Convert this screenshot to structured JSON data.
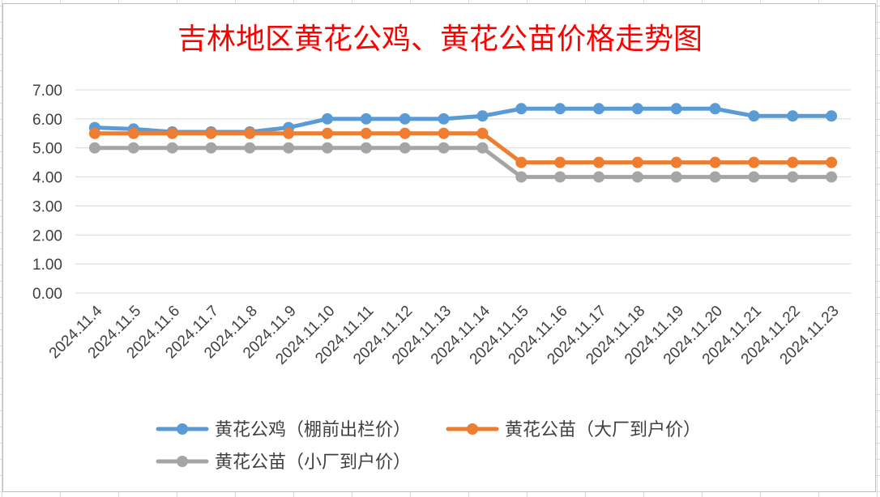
{
  "chart_data": {
    "type": "line",
    "title": "吉林地区黄花公鸡、黄花公苗价格走势图",
    "categories": [
      "2024.11.4",
      "2024.11.5",
      "2024.11.6",
      "2024.11.7",
      "2024.11.8",
      "2024.11.9",
      "2024.11.10",
      "2024.11.11",
      "2024.11.12",
      "2024.11.13",
      "2024.11.14",
      "2024.11.15",
      "2024.11.16",
      "2024.11.17",
      "2024.11.18",
      "2024.11.19",
      "2024.11.20",
      "2024.11.21",
      "2024.11.22",
      "2024.11.23"
    ],
    "yticks": [
      "0.00",
      "1.00",
      "2.00",
      "3.00",
      "4.00",
      "5.00",
      "6.00",
      "7.00"
    ],
    "ylim": [
      0,
      7
    ],
    "grid": true,
    "legend_position": "bottom",
    "series": [
      {
        "name": "黄花公鸡（棚前出栏价）",
        "color": "#5b9bd5",
        "values": [
          5.7,
          5.65,
          5.55,
          5.55,
          5.55,
          5.7,
          6.0,
          6.0,
          6.0,
          6.0,
          6.1,
          6.35,
          6.35,
          6.35,
          6.35,
          6.35,
          6.35,
          6.1,
          6.1,
          6.1
        ]
      },
      {
        "name": "黄花公苗（大厂到户价）",
        "color": "#ed7d31",
        "values": [
          5.5,
          5.5,
          5.5,
          5.5,
          5.5,
          5.5,
          5.5,
          5.5,
          5.5,
          5.5,
          5.5,
          4.5,
          4.5,
          4.5,
          4.5,
          4.5,
          4.5,
          4.5,
          4.5,
          4.5
        ]
      },
      {
        "name": "黄花公苗（小厂到户价）",
        "color": "#a5a5a5",
        "values": [
          5.0,
          5.0,
          5.0,
          5.0,
          5.0,
          5.0,
          5.0,
          5.0,
          5.0,
          5.0,
          5.0,
          4.0,
          4.0,
          4.0,
          4.0,
          4.0,
          4.0,
          4.0,
          4.0,
          4.0
        ]
      }
    ],
    "title_color": "#ff0000"
  }
}
